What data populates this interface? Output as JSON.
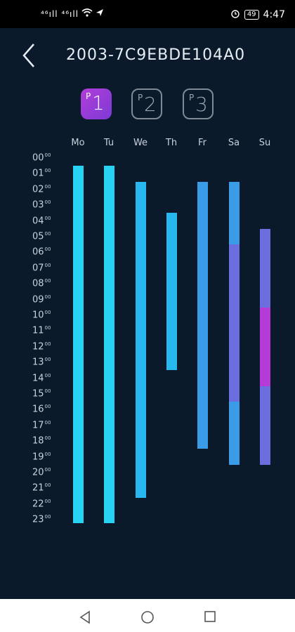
{
  "status": {
    "signal_left": "⁴⁶ıll ⁴⁶ıll",
    "time": "4:47",
    "battery": "49"
  },
  "header": {
    "title": "2003-7C9EBDE104A0"
  },
  "programs": [
    {
      "p": "P",
      "n": "1",
      "active": true
    },
    {
      "p": "P",
      "n": "2",
      "active": false
    },
    {
      "p": "P",
      "n": "3",
      "active": false
    }
  ],
  "days": [
    "Mo",
    "Tu",
    "We",
    "Th",
    "Fr",
    "Sa",
    "Su"
  ],
  "hours": [
    "00",
    "01",
    "02",
    "03",
    "04",
    "05",
    "06",
    "07",
    "08",
    "09",
    "10",
    "11",
    "12",
    "13",
    "14",
    "15",
    "16",
    "17",
    "18",
    "19",
    "20",
    "21",
    "22",
    "23"
  ],
  "minutes_sup": "00",
  "schedule": [
    {
      "day": "Mo",
      "segments": [
        {
          "start": 0.5,
          "end": 23.2,
          "color": "#27d2f2"
        }
      ]
    },
    {
      "day": "Tu",
      "segments": [
        {
          "start": 0.5,
          "end": 23.2,
          "color": "#27d2f2"
        }
      ]
    },
    {
      "day": "We",
      "segments": [
        {
          "start": 1.5,
          "end": 21.6,
          "color": "#26b8ee"
        }
      ]
    },
    {
      "day": "Th",
      "segments": [
        {
          "start": 3.5,
          "end": 13.5,
          "color": "#26b8ee"
        }
      ]
    },
    {
      "day": "Fr",
      "segments": [
        {
          "start": 1.5,
          "end": 18.5,
          "color": "#3a9be6"
        }
      ]
    },
    {
      "day": "Sa",
      "segments": [
        {
          "start": 1.5,
          "end": 5.5,
          "color": "#3a9be6"
        },
        {
          "start": 5.5,
          "end": 15.5,
          "color": "#6c6ee0"
        },
        {
          "start": 15.5,
          "end": 19.5,
          "color": "#3a9be6"
        }
      ]
    },
    {
      "day": "Su",
      "segments": [
        {
          "start": 4.5,
          "end": 9.5,
          "color": "#6c6ee0"
        },
        {
          "start": 9.5,
          "end": 14.5,
          "color": "#b63ad8"
        },
        {
          "start": 14.5,
          "end": 19.5,
          "color": "#6c6ee0"
        }
      ]
    }
  ],
  "colors": {
    "background": "#0a1a2b",
    "accent": "#b23dd8"
  }
}
